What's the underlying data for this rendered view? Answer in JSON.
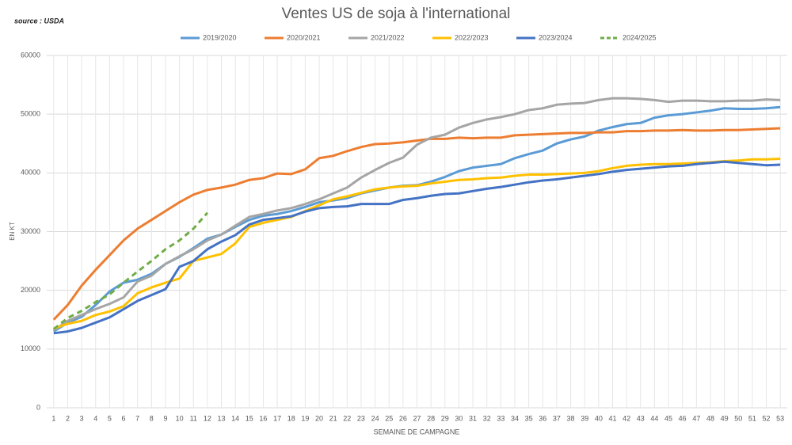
{
  "chart_data": {
    "type": "line",
    "title": "Ventes US de soja à l'international",
    "source": "source : USDA",
    "x_label": "SEMAINE DE CAMPAGNE",
    "y_label": "EN KT",
    "categories": [
      1,
      2,
      3,
      4,
      5,
      6,
      7,
      8,
      9,
      10,
      11,
      12,
      13,
      14,
      15,
      16,
      17,
      18,
      19,
      20,
      21,
      22,
      23,
      24,
      25,
      26,
      27,
      28,
      29,
      30,
      31,
      32,
      33,
      34,
      35,
      36,
      37,
      38,
      39,
      40,
      41,
      42,
      43,
      44,
      45,
      46,
      47,
      48,
      49,
      50,
      51,
      52,
      53
    ],
    "ylim": [
      0,
      60000
    ],
    "yticks": [
      0,
      10000,
      20000,
      30000,
      40000,
      50000,
      60000
    ],
    "grid": true,
    "legend": "top",
    "series": [
      {
        "name": "2019/2020",
        "color": "#5b9bd5",
        "dashed": false,
        "values": [
          13000,
          14500,
          15500,
          17500,
          19800,
          21300,
          21800,
          22800,
          24500,
          25700,
          27200,
          28800,
          29500,
          30800,
          32000,
          32700,
          33000,
          33500,
          34200,
          35000,
          35300,
          35700,
          36500,
          37000,
          37500,
          37800,
          37900,
          38500,
          39300,
          40300,
          40900,
          41200,
          41500,
          42500,
          43200,
          43800,
          45000,
          45700,
          46200,
          47200,
          47800,
          48300,
          48500,
          49400,
          49800,
          50000,
          50300,
          50600,
          51000,
          50900,
          50900,
          51000,
          51200
        ]
      },
      {
        "name": "2020/2021",
        "color": "#ed7d31",
        "dashed": false,
        "values": [
          15000,
          17500,
          20800,
          23500,
          26000,
          28500,
          30500,
          32000,
          33500,
          35000,
          36300,
          37100,
          37500,
          38000,
          38800,
          39100,
          39900,
          39800,
          40600,
          42500,
          42900,
          43700,
          44400,
          44900,
          45000,
          45200,
          45500,
          45800,
          45800,
          46000,
          45900,
          46000,
          46000,
          46400,
          46500,
          46600,
          46700,
          46800,
          46800,
          46900,
          46900,
          47100,
          47100,
          47200,
          47200,
          47300,
          47200,
          47200,
          47300,
          47300,
          47400,
          47500,
          47600
        ]
      },
      {
        "name": "2021/2022",
        "color": "#a5a5a5",
        "dashed": false,
        "values": [
          13200,
          14800,
          15800,
          16800,
          17700,
          18800,
          21500,
          22500,
          24500,
          25800,
          27000,
          28500,
          29500,
          31000,
          32500,
          33000,
          33600,
          34000,
          34700,
          35500,
          36500,
          37500,
          39200,
          40500,
          41700,
          42600,
          44800,
          46000,
          46500,
          47700,
          48500,
          49100,
          49500,
          50000,
          50700,
          51000,
          51600,
          51800,
          51900,
          52400,
          52700,
          52700,
          52600,
          52400,
          52100,
          52300,
          52300,
          52200,
          52200,
          52300,
          52300,
          52500,
          52400
        ]
      },
      {
        "name": "2022/2023",
        "color": "#ffc000",
        "dashed": false,
        "values": [
          13500,
          14300,
          14800,
          15800,
          16400,
          17300,
          19500,
          20500,
          21300,
          22000,
          25000,
          25600,
          26200,
          28000,
          30800,
          31500,
          32000,
          32500,
          33500,
          34500,
          35500,
          36000,
          36600,
          37200,
          37500,
          37700,
          37800,
          38200,
          38500,
          38800,
          38900,
          39100,
          39200,
          39500,
          39700,
          39700,
          39800,
          39900,
          40000,
          40300,
          40800,
          41200,
          41400,
          41500,
          41500,
          41600,
          41700,
          41800,
          42000,
          42100,
          42300,
          42300,
          42400
        ]
      },
      {
        "name": "2023/2024",
        "color": "#4472c4",
        "dashed": false,
        "values": [
          12700,
          13000,
          13600,
          14500,
          15400,
          16800,
          18200,
          19200,
          20200,
          24000,
          25000,
          27000,
          28300,
          29400,
          31200,
          32000,
          32300,
          32600,
          33400,
          34000,
          34200,
          34300,
          34700,
          34700,
          34700,
          35400,
          35700,
          36100,
          36400,
          36500,
          36900,
          37300,
          37600,
          38000,
          38400,
          38700,
          38900,
          39200,
          39500,
          39800,
          40200,
          40500,
          40700,
          40900,
          41100,
          41200,
          41500,
          41700,
          41900,
          41700,
          41500,
          41300,
          41400
        ]
      },
      {
        "name": "2024/2025",
        "color": "#70ad47",
        "dashed": true,
        "values": [
          13400,
          15300,
          16500,
          18000,
          19300,
          21300,
          23200,
          25000,
          27000,
          28500,
          30500,
          33200,
          null,
          null,
          null,
          null,
          null,
          null,
          null,
          null,
          null,
          null,
          null,
          null,
          null,
          null,
          null,
          null,
          null,
          null,
          null,
          null,
          null,
          null,
          null,
          null,
          null,
          null,
          null,
          null,
          null,
          null,
          null,
          null,
          null,
          null,
          null,
          null,
          null,
          null,
          null,
          null,
          null
        ]
      }
    ]
  }
}
